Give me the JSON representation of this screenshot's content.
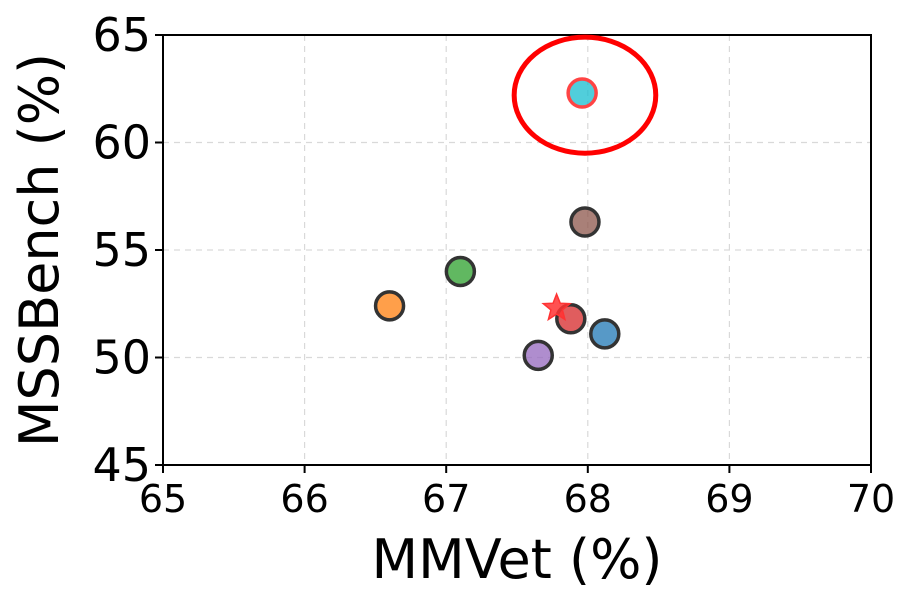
{
  "chart_data": {
    "type": "scatter",
    "title": "",
    "xlabel": "MMVet (%)",
    "ylabel": "MSSBench (%)",
    "xlim": [
      65,
      70
    ],
    "ylim": [
      45,
      65
    ],
    "xticks": [
      "65",
      "66",
      "67",
      "68",
      "69",
      "70"
    ],
    "yticks": [
      "45",
      "50",
      "55",
      "60",
      "65"
    ],
    "grid": true,
    "legend": "none",
    "points": [
      {
        "x": 66.6,
        "y": 52.4,
        "color": "#ff7f0e",
        "marker": "circle"
      },
      {
        "x": 67.1,
        "y": 54.0,
        "color": "#2ca02c",
        "marker": "circle"
      },
      {
        "x": 67.65,
        "y": 50.1,
        "color": "#9467bd",
        "marker": "circle"
      },
      {
        "x": 67.88,
        "y": 51.8,
        "color": "#d62728",
        "marker": "circle"
      },
      {
        "x": 68.12,
        "y": 51.1,
        "color": "#1f77b4",
        "marker": "circle"
      },
      {
        "x": 67.98,
        "y": 56.3,
        "color": "#8c564b",
        "marker": "circle"
      },
      {
        "x": 67.96,
        "y": 62.3,
        "color": "#17becf",
        "marker": "circle",
        "edge_color": "#ff4444"
      },
      {
        "x": 67.78,
        "y": 52.3,
        "color": "#ff3333",
        "marker": "star"
      }
    ],
    "annotations": [
      {
        "type": "ellipse",
        "cx": 67.98,
        "cy": 62.2,
        "rx_data": 0.5,
        "ry_data": 2.7,
        "color": "#ff0000"
      }
    ]
  }
}
